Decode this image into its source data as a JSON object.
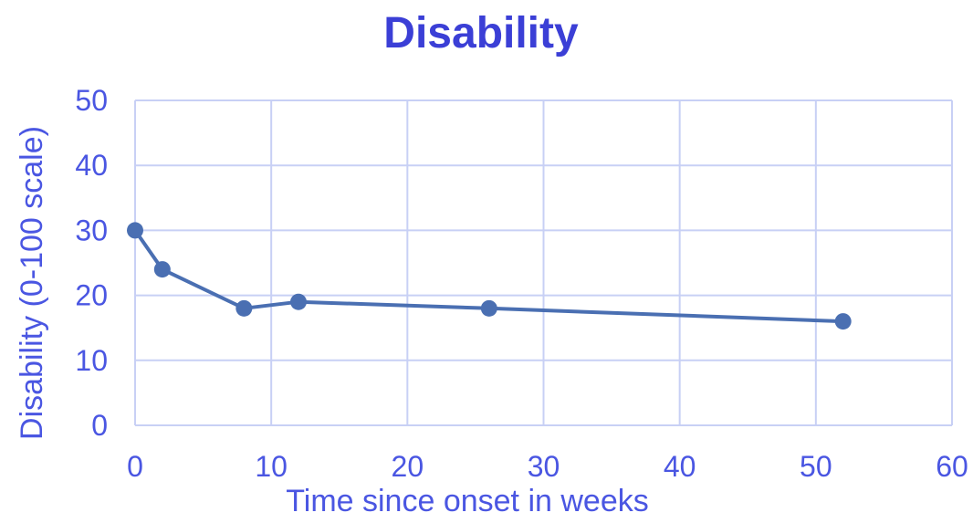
{
  "colors": {
    "title": "#3b3fd6",
    "text": "#4a56e2",
    "grid": "#c8d0f5",
    "series": "#4a6fb2"
  },
  "chart_data": {
    "type": "line",
    "title": "Disability",
    "xlabel": "Time since onset in weeks",
    "ylabel": "Disability (0-100 scale)",
    "xlim": [
      0,
      60
    ],
    "ylim": [
      0,
      50
    ],
    "xticks": [
      0,
      10,
      20,
      30,
      40,
      50,
      60
    ],
    "yticks": [
      0,
      10,
      20,
      30,
      40,
      50
    ],
    "grid": true,
    "series": [
      {
        "x": [
          0,
          2,
          8,
          12,
          26,
          52
        ],
        "y": [
          30,
          24,
          18,
          19,
          18,
          16
        ]
      }
    ]
  }
}
